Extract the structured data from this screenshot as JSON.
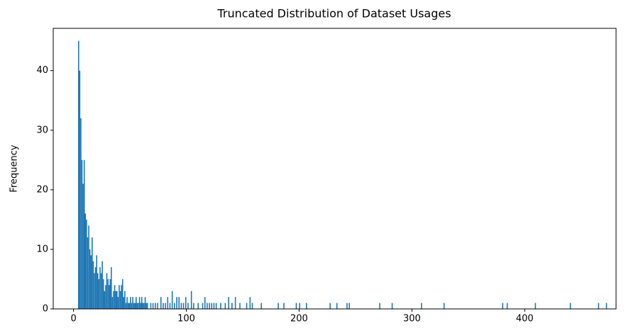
{
  "chart_data": {
    "type": "histogram",
    "title": "Truncated Distribution of Dataset Usages",
    "ylabel": "Frequency",
    "color": "#1f77b4",
    "bins": [
      4,
      5,
      6,
      7,
      8,
      9,
      10,
      11,
      12,
      13,
      14,
      15,
      16,
      17,
      18,
      19,
      20,
      21,
      22,
      23,
      24,
      25,
      26,
      27,
      28,
      29,
      30,
      31,
      32,
      33,
      34,
      35,
      36,
      37,
      38,
      39,
      40,
      41,
      42,
      43,
      44,
      45,
      46,
      47,
      48,
      49,
      50,
      51,
      52,
      53,
      54,
      55,
      56,
      57,
      58,
      59,
      60,
      61,
      62,
      63,
      64,
      65,
      66,
      68,
      69,
      70,
      71,
      72,
      73,
      74,
      75,
      77,
      78,
      79,
      80,
      81,
      82,
      83,
      84,
      85,
      86,
      87,
      88,
      89,
      90,
      91,
      92,
      93,
      94,
      95,
      96,
      97,
      98,
      99,
      100,
      101,
      102,
      104,
      105,
      106,
      107,
      110,
      111,
      114,
      115,
      116,
      117,
      118,
      119,
      120,
      121,
      122,
      123,
      124,
      125,
      126,
      127,
      130,
      131,
      134,
      135,
      137,
      138,
      140,
      141,
      143,
      144,
      147,
      148,
      153,
      154,
      156,
      157,
      158,
      159,
      166,
      167,
      181,
      182,
      186,
      187,
      197,
      198,
      200,
      201,
      206,
      207,
      227,
      228,
      233,
      234,
      242,
      243,
      244,
      245,
      271,
      272,
      282,
      283,
      308,
      309,
      328,
      329,
      380,
      381,
      384,
      385,
      409,
      410,
      440,
      441,
      465,
      466,
      472,
      473
    ],
    "counts": [
      45,
      40,
      32,
      25,
      21,
      25,
      16,
      15,
      12,
      14,
      10,
      9,
      12,
      8,
      6,
      7,
      9,
      6,
      5,
      7,
      6,
      8,
      5,
      3,
      4,
      6,
      5,
      4,
      5,
      7,
      2,
      3,
      4,
      3,
      3,
      2,
      4,
      3,
      4,
      5,
      2,
      3,
      1,
      2,
      1,
      1,
      2,
      1,
      2,
      1,
      1,
      2,
      1,
      1,
      2,
      1,
      2,
      1,
      1,
      2,
      1,
      1,
      0,
      1,
      0,
      1,
      0,
      1,
      0,
      1,
      0,
      2,
      0,
      1,
      0,
      1,
      0,
      2,
      0,
      1,
      0,
      3,
      0,
      1,
      0,
      2,
      0,
      2,
      0,
      1,
      0,
      1,
      0,
      2,
      0,
      1,
      0,
      3,
      0,
      1,
      0,
      1,
      0,
      1,
      0,
      2,
      0,
      1,
      0,
      1,
      0,
      1,
      0,
      1,
      0,
      1,
      0,
      1,
      0,
      1,
      0,
      2,
      0,
      1,
      0,
      2,
      0,
      1,
      0,
      1,
      0,
      2,
      0,
      1,
      0,
      1,
      0,
      1,
      0,
      1,
      0,
      1,
      0,
      1,
      0,
      1,
      0,
      1,
      0,
      1,
      0,
      1,
      0,
      1,
      0,
      1,
      0,
      1,
      0,
      1,
      0,
      1,
      0,
      1,
      0,
      1,
      0,
      1,
      0,
      1,
      0,
      1,
      0,
      1
    ],
    "xlim": [
      -18,
      481
    ],
    "ylim": [
      0,
      47.1
    ],
    "xticks": [
      0,
      100,
      200,
      300,
      400
    ],
    "yticks": [
      0,
      10,
      20,
      30,
      40
    ]
  }
}
